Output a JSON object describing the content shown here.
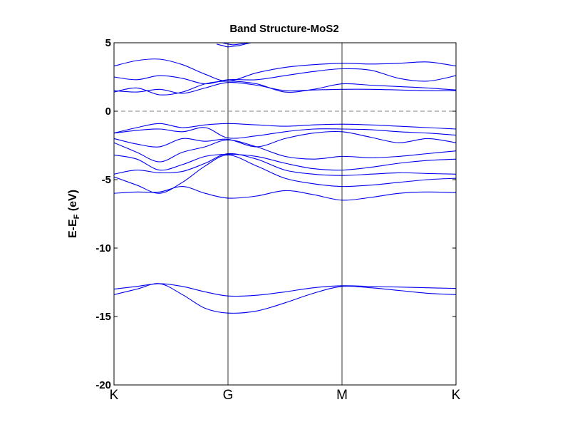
{
  "chart_data": {
    "type": "line",
    "title": "Band Structure-MoS2",
    "ylabel": {
      "base": "E-E",
      "sub": "F",
      "unit": " (eV)"
    },
    "ylim": [
      -20,
      5
    ],
    "yticks": [
      5,
      0,
      -5,
      -10,
      -15,
      -20
    ],
    "xlim": [
      0,
      3
    ],
    "kpoints": [
      {
        "label": "K",
        "x": 0
      },
      {
        "label": "G",
        "x": 1
      },
      {
        "label": "M",
        "x": 2
      },
      {
        "label": "K",
        "x": 3
      }
    ],
    "fermi_level": 0,
    "colors": {
      "bands": "#0000ee",
      "fermi": "#808080",
      "axes": "#000000"
    },
    "series": [
      {
        "x": [
          0,
          0.2,
          0.4,
          0.6,
          0.8,
          1.0,
          1.25,
          1.5,
          1.75,
          2.0,
          2.25,
          2.5,
          2.75,
          3.0
        ],
        "values": [
          -13.4,
          -13.0,
          -12.6,
          -13.4,
          -14.4,
          -14.75,
          -14.6,
          -14.0,
          -13.3,
          -12.8,
          -12.9,
          -13.1,
          -13.3,
          -13.4
        ]
      },
      {
        "x": [
          0,
          0.2,
          0.4,
          0.6,
          0.8,
          1.0,
          1.25,
          1.5,
          1.75,
          2.0,
          2.25,
          2.5,
          2.75,
          3.0
        ],
        "values": [
          -13.0,
          -12.8,
          -12.6,
          -12.8,
          -13.2,
          -13.5,
          -13.45,
          -13.2,
          -12.9,
          -12.75,
          -12.8,
          -12.85,
          -12.9,
          -12.95
        ]
      },
      {
        "x": [
          0,
          0.2,
          0.4,
          0.6,
          0.8,
          1.0,
          1.25,
          1.5,
          1.75,
          2.0,
          2.25,
          2.5,
          2.75,
          3.0
        ],
        "values": [
          -6.0,
          -5.9,
          -5.9,
          -5.5,
          -6.0,
          -6.35,
          -6.2,
          -5.8,
          -6.1,
          -6.5,
          -6.3,
          -6.0,
          -5.9,
          -5.95
        ]
      },
      {
        "x": [
          0,
          0.2,
          0.4,
          0.6,
          0.8,
          1.0,
          1.25,
          1.5,
          1.75,
          2.0,
          2.25,
          2.5,
          2.75,
          3.0
        ],
        "values": [
          -4.8,
          -5.4,
          -6.0,
          -5.2,
          -4.0,
          -3.2,
          -4.0,
          -4.9,
          -5.3,
          -5.5,
          -5.4,
          -5.2,
          -5.0,
          -4.9
        ]
      },
      {
        "x": [
          0,
          0.2,
          0.4,
          0.6,
          0.8,
          1.0,
          1.25,
          1.5,
          1.75,
          2.0,
          2.25,
          2.5,
          2.75,
          3.0
        ],
        "values": [
          -4.6,
          -4.3,
          -4.5,
          -4.4,
          -3.8,
          -3.1,
          -3.5,
          -4.3,
          -4.6,
          -4.7,
          -4.6,
          -4.5,
          -4.55,
          -4.6
        ]
      },
      {
        "x": [
          0,
          0.2,
          0.4,
          0.6,
          0.8,
          1.0,
          1.25,
          1.5,
          1.75,
          2.0,
          2.25,
          2.5,
          2.75,
          3.0
        ],
        "values": [
          -3.2,
          -3.5,
          -4.3,
          -3.9,
          -3.3,
          -3.15,
          -3.3,
          -3.8,
          -4.2,
          -4.3,
          -4.1,
          -3.8,
          -3.6,
          -3.5
        ]
      },
      {
        "x": [
          0,
          0.2,
          0.4,
          0.6,
          0.8,
          1.0,
          1.25,
          1.5,
          1.75,
          2.0,
          2.25,
          2.5,
          2.75,
          3.0
        ],
        "values": [
          -2.3,
          -3.0,
          -3.7,
          -3.0,
          -2.6,
          -2.1,
          -2.6,
          -3.3,
          -3.5,
          -3.3,
          -3.4,
          -3.3,
          -3.1,
          -2.9
        ]
      },
      {
        "x": [
          0,
          0.2,
          0.4,
          0.6,
          0.8,
          1.0,
          1.25,
          1.5,
          1.75,
          2.0,
          2.25,
          2.5,
          2.75,
          3.0
        ],
        "values": [
          -2.0,
          -2.4,
          -2.6,
          -2.0,
          -2.2,
          -2.05,
          -2.6,
          -2.0,
          -1.6,
          -1.5,
          -1.9,
          -2.3,
          -2.0,
          -2.3
        ]
      },
      {
        "x": [
          0,
          0.2,
          0.4,
          0.6,
          0.8,
          1.0,
          1.25,
          1.5,
          1.75,
          2.0,
          2.25,
          2.5,
          2.75,
          3.0
        ],
        "values": [
          -1.6,
          -1.4,
          -1.3,
          -1.5,
          -1.2,
          -1.95,
          -1.8,
          -1.5,
          -1.3,
          -1.3,
          -1.35,
          -1.5,
          -1.6,
          -1.75
        ]
      },
      {
        "x": [
          0,
          0.2,
          0.4,
          0.6,
          0.8,
          1.0,
          1.25,
          1.5,
          1.75,
          2.0,
          2.25,
          2.5,
          2.75,
          3.0
        ],
        "values": [
          -1.6,
          -1.2,
          -0.9,
          -1.2,
          -1.0,
          -0.9,
          -1.0,
          -1.1,
          -1.0,
          -0.95,
          -1.0,
          -1.1,
          -1.2,
          -1.3
        ]
      },
      {
        "x": [
          0,
          0.2,
          0.4,
          0.6,
          0.8,
          1.0,
          1.25,
          1.5,
          1.75,
          2.0,
          2.25,
          2.5,
          2.75,
          3.0
        ],
        "values": [
          1.5,
          1.4,
          1.6,
          1.3,
          1.7,
          2.1,
          1.9,
          1.5,
          1.55,
          1.6,
          1.6,
          1.55,
          1.5,
          1.5
        ]
      },
      {
        "x": [
          0,
          0.2,
          0.4,
          0.6,
          0.8,
          1.0,
          1.25,
          1.5,
          1.75,
          2.0,
          2.25,
          2.5,
          2.75,
          3.0
        ],
        "values": [
          1.4,
          1.7,
          1.2,
          1.4,
          2.0,
          2.2,
          2.0,
          1.4,
          1.6,
          2.0,
          1.9,
          1.8,
          1.7,
          1.55
        ]
      },
      {
        "x": [
          0,
          0.2,
          0.4,
          0.6,
          0.8,
          1.0,
          1.25,
          1.5,
          1.75,
          2.0,
          2.25,
          2.5,
          2.75,
          3.0
        ],
        "values": [
          2.5,
          2.3,
          2.6,
          2.4,
          2.0,
          2.3,
          2.3,
          2.6,
          2.9,
          3.1,
          3.0,
          2.4,
          2.2,
          2.6
        ]
      },
      {
        "x": [
          0,
          0.2,
          0.4,
          0.6,
          0.8,
          1.0,
          1.25,
          1.5,
          1.75,
          2.0,
          2.25,
          2.5,
          2.75,
          3.0
        ],
        "values": [
          3.3,
          3.7,
          3.8,
          3.4,
          2.7,
          2.2,
          2.8,
          3.2,
          3.4,
          3.5,
          3.45,
          3.5,
          3.6,
          3.3
        ]
      },
      {
        "x": [
          0.9,
          0.95,
          1.0,
          1.05,
          1.1,
          1.15,
          1.2
        ],
        "values": [
          4.9,
          4.8,
          4.7,
          4.75,
          4.8,
          4.9,
          5.0
        ]
      },
      {
        "x": [
          0.95,
          1.0,
          1.05,
          1.1,
          1.15,
          1.2
        ],
        "values": [
          5.0,
          4.9,
          4.85,
          4.9,
          4.95,
          5.0
        ]
      }
    ]
  }
}
